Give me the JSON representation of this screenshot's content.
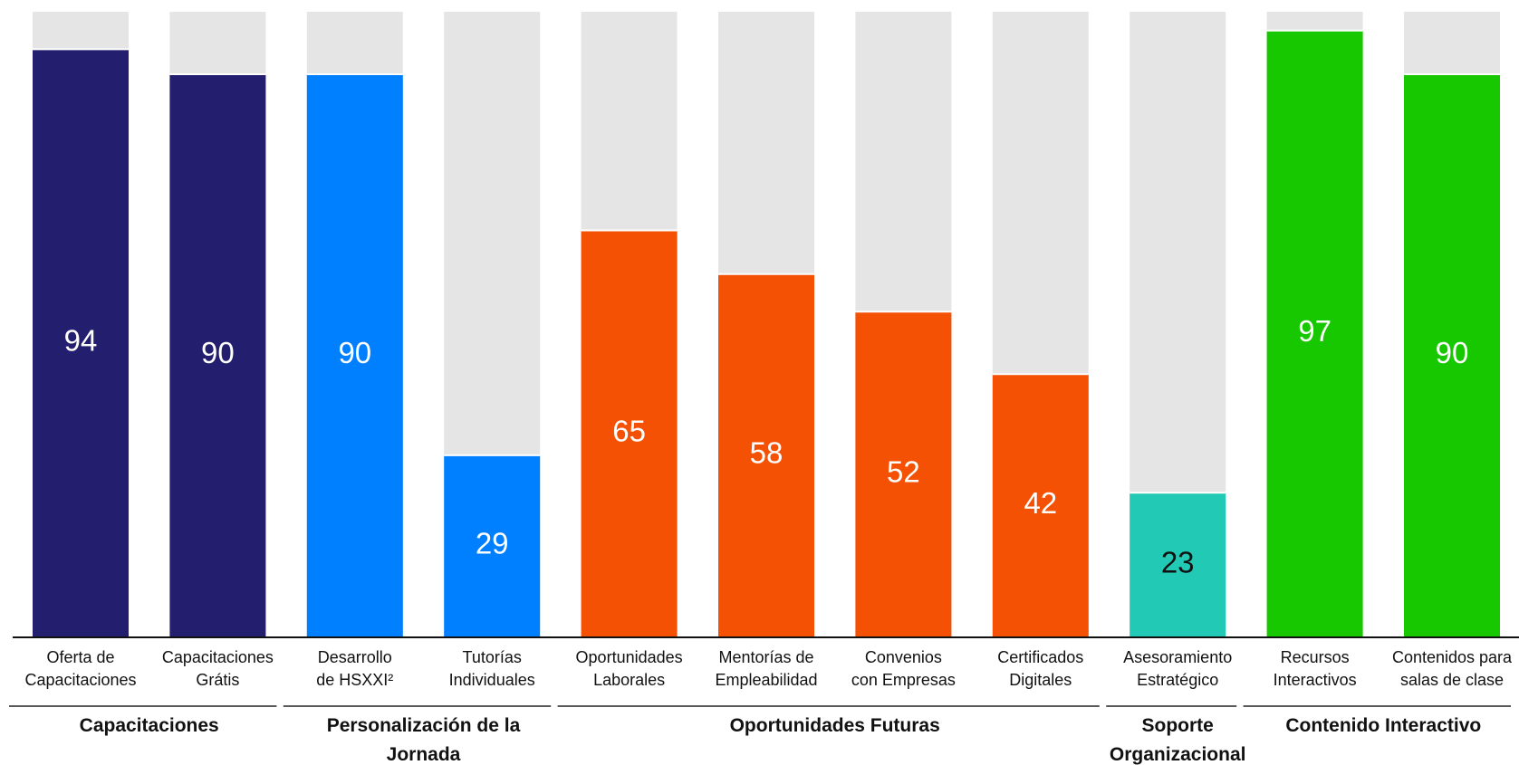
{
  "chart_data": {
    "type": "bar",
    "stacked_background": true,
    "ylim": [
      0,
      100
    ],
    "grid": false,
    "categories": [
      [
        "Oferta de",
        "Capacitaciones"
      ],
      [
        "Capacitaciones",
        "Grátis"
      ],
      [
        "Desarrollo",
        "de HSXXI²"
      ],
      [
        "Tutorías",
        "Individuales"
      ],
      [
        "Oportunidades",
        "Laborales"
      ],
      [
        "Mentorías de",
        "Empleabilidad"
      ],
      [
        "Convenios",
        "con Empresas"
      ],
      [
        "Certificados",
        "Digitales"
      ],
      [
        "Asesoramiento",
        "Estratégico"
      ],
      [
        "Recursos",
        "Interactivos"
      ],
      [
        "Contenidos para",
        "salas de clase"
      ]
    ],
    "values": [
      94,
      90,
      90,
      29,
      65,
      58,
      52,
      42,
      23,
      97,
      90
    ],
    "groups": [
      {
        "label": [
          "Capacitaciones"
        ],
        "color": "#231E6E",
        "label_color": "#ffffff",
        "start": 0,
        "end": 1
      },
      {
        "label": [
          "Personalización de la",
          "Jornada"
        ],
        "color": "#0080FF",
        "label_color": "#ffffff",
        "start": 2,
        "end": 3
      },
      {
        "label": [
          "Oportunidades Futuras"
        ],
        "color": "#F45105",
        "label_color": "#ffffff",
        "start": 4,
        "end": 7
      },
      {
        "label": [
          "Soporte",
          "Organizacional"
        ],
        "color": "#22C9B4",
        "label_color": "#111111",
        "start": 8,
        "end": 8
      },
      {
        "label": [
          "Contenido Interactivo"
        ],
        "color": "#17C700",
        "label_color": "#ffffff",
        "start": 9,
        "end": 10
      }
    ],
    "background_color": "#E5E5E5"
  }
}
